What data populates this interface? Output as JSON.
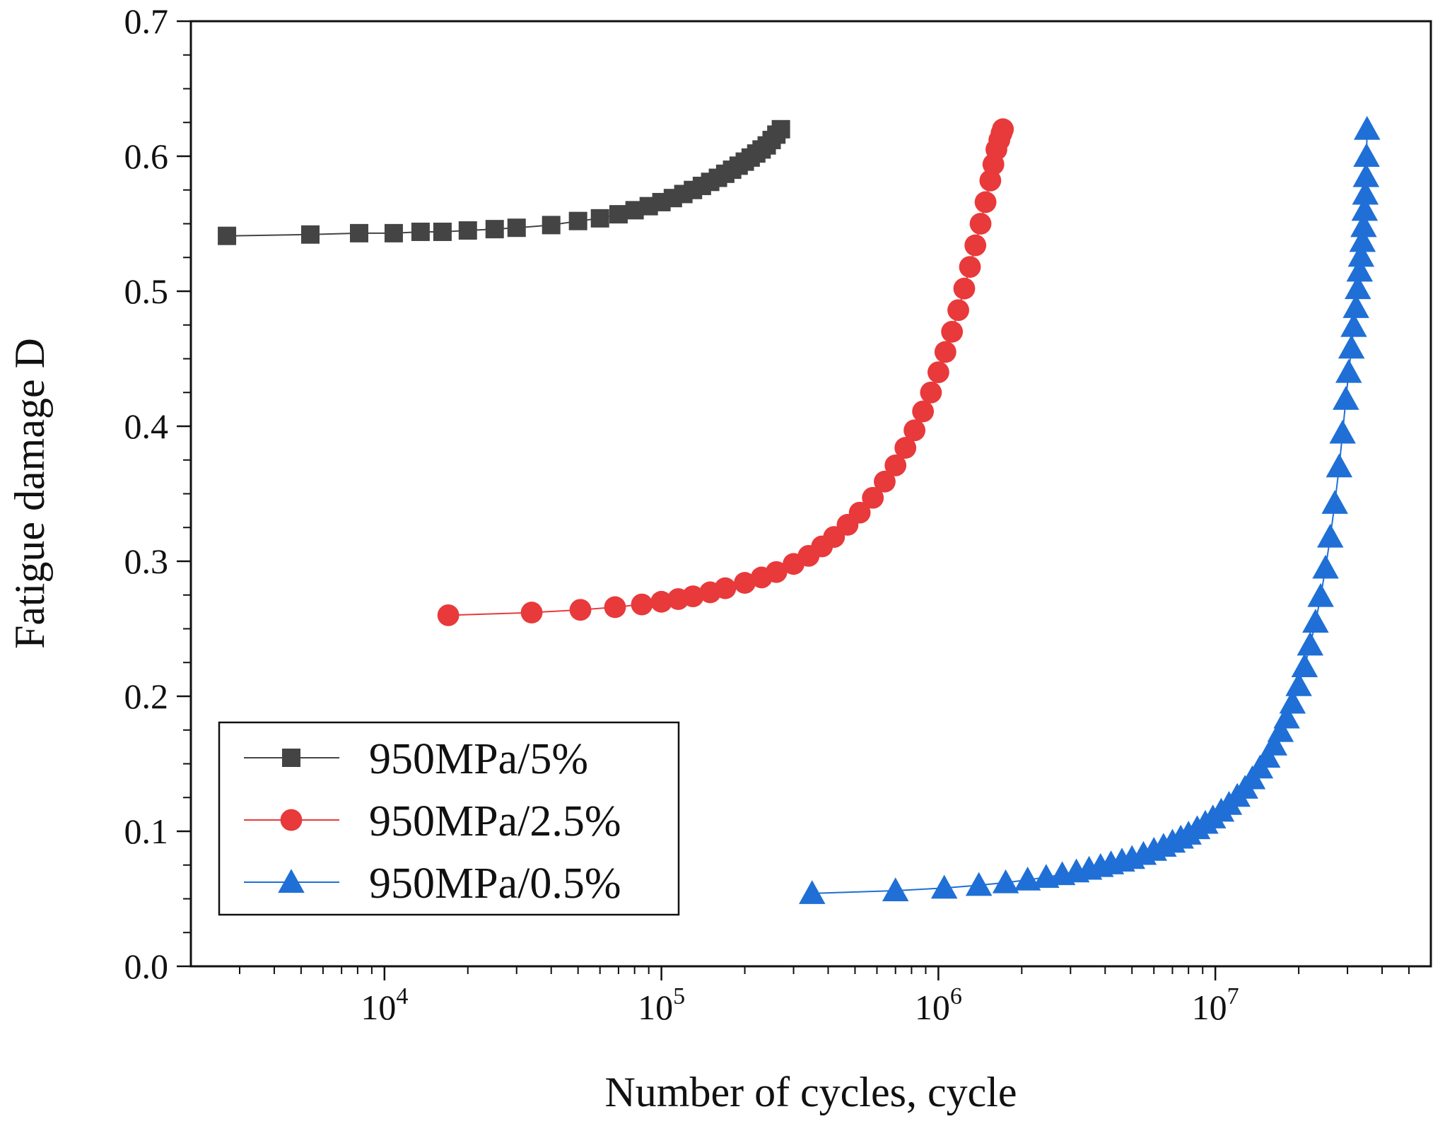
{
  "chart_data": {
    "type": "scatter",
    "title": "",
    "xlabel": "Number of cycles, cycle",
    "ylabel": "Fatigue damage D",
    "xscale": "log",
    "xlim": [
      2000,
      60000000
    ],
    "ylim": [
      0,
      0.7
    ],
    "x_ticks": [
      {
        "value": 10000,
        "base": "10",
        "exp": "4"
      },
      {
        "value": 100000,
        "base": "10",
        "exp": "5"
      },
      {
        "value": 1000000,
        "base": "10",
        "exp": "6"
      },
      {
        "value": 10000000,
        "base": "10",
        "exp": "7"
      }
    ],
    "y_ticks": [
      {
        "value": 0.0,
        "label": "0.0"
      },
      {
        "value": 0.1,
        "label": "0.1"
      },
      {
        "value": 0.2,
        "label": "0.2"
      },
      {
        "value": 0.3,
        "label": "0.3"
      },
      {
        "value": 0.4,
        "label": "0.4"
      },
      {
        "value": 0.5,
        "label": "0.5"
      },
      {
        "value": 0.6,
        "label": "0.6"
      },
      {
        "value": 0.7,
        "label": "0.7"
      }
    ],
    "grid": false,
    "legend_position": "bottom-left",
    "series": [
      {
        "name": "950MPa/5%",
        "color": "#444444",
        "marker": "square",
        "x": [
          2700,
          5400,
          8100,
          10800,
          13500,
          16200,
          20000,
          25000,
          30000,
          40000,
          50000,
          60000,
          70000,
          80000,
          90000,
          100000,
          110000,
          120000,
          130000,
          140000,
          150000,
          160000,
          170000,
          180000,
          190000,
          200000,
          210000,
          220000,
          230000,
          240000,
          250000,
          260000,
          270000
        ],
        "y": [
          0.541,
          0.542,
          0.543,
          0.543,
          0.544,
          0.544,
          0.545,
          0.546,
          0.547,
          0.549,
          0.552,
          0.554,
          0.557,
          0.56,
          0.563,
          0.566,
          0.569,
          0.572,
          0.575,
          0.578,
          0.581,
          0.584,
          0.587,
          0.59,
          0.593,
          0.596,
          0.599,
          0.602,
          0.605,
          0.608,
          0.612,
          0.616,
          0.62
        ]
      },
      {
        "name": "950MPa/2.5%",
        "color": "#e8393b",
        "marker": "circle",
        "x": [
          17000,
          34000,
          51000,
          68000,
          85000,
          100000,
          115000,
          130000,
          150000,
          170000,
          200000,
          230000,
          260000,
          300000,
          340000,
          380000,
          420000,
          470000,
          520000,
          580000,
          640000,
          700000,
          760000,
          820000,
          880000,
          940000,
          1000000,
          1060000,
          1120000,
          1180000,
          1240000,
          1300000,
          1360000,
          1420000,
          1480000,
          1540000,
          1580000,
          1620000,
          1660000,
          1690000,
          1710000
        ],
        "y": [
          0.26,
          0.262,
          0.264,
          0.266,
          0.268,
          0.27,
          0.272,
          0.274,
          0.277,
          0.28,
          0.284,
          0.288,
          0.292,
          0.298,
          0.304,
          0.311,
          0.318,
          0.327,
          0.336,
          0.347,
          0.359,
          0.371,
          0.384,
          0.397,
          0.411,
          0.425,
          0.44,
          0.455,
          0.47,
          0.486,
          0.502,
          0.518,
          0.534,
          0.55,
          0.566,
          0.582,
          0.594,
          0.605,
          0.612,
          0.617,
          0.62
        ]
      },
      {
        "name": "950MPa/0.5%",
        "color": "#1f6fd6",
        "marker": "triangle",
        "x": [
          350000,
          700000,
          1050000,
          1400000,
          1750000,
          2100000,
          2450000,
          2800000,
          3150000,
          3500000,
          3850000,
          4200000,
          4600000,
          5000000,
          5500000,
          6000000,
          6500000,
          7000000,
          7500000,
          8000000,
          8600000,
          9200000,
          9800000,
          10500000,
          11200000,
          12000000,
          12800000,
          13600000,
          14500000,
          15400000,
          16300000,
          17200000,
          18100000,
          19000000,
          20000000,
          21000000,
          22000000,
          23000000,
          24000000,
          25000000,
          26000000,
          27000000,
          28000000,
          28800000,
          29600000,
          30300000,
          31000000,
          31600000,
          32200000,
          32700000,
          33200000,
          33600000,
          34000000,
          34300000,
          34600000,
          34800000,
          35000000,
          35150000,
          35300000
        ],
        "y": [
          0.054,
          0.056,
          0.058,
          0.06,
          0.062,
          0.064,
          0.066,
          0.068,
          0.07,
          0.072,
          0.074,
          0.076,
          0.078,
          0.08,
          0.083,
          0.086,
          0.089,
          0.092,
          0.095,
          0.098,
          0.102,
          0.106,
          0.11,
          0.115,
          0.12,
          0.126,
          0.132,
          0.139,
          0.147,
          0.155,
          0.164,
          0.174,
          0.184,
          0.195,
          0.208,
          0.222,
          0.238,
          0.255,
          0.274,
          0.295,
          0.318,
          0.343,
          0.37,
          0.395,
          0.42,
          0.44,
          0.458,
          0.474,
          0.488,
          0.502,
          0.515,
          0.526,
          0.537,
          0.548,
          0.56,
          0.572,
          0.585,
          0.6,
          0.62
        ]
      }
    ]
  }
}
